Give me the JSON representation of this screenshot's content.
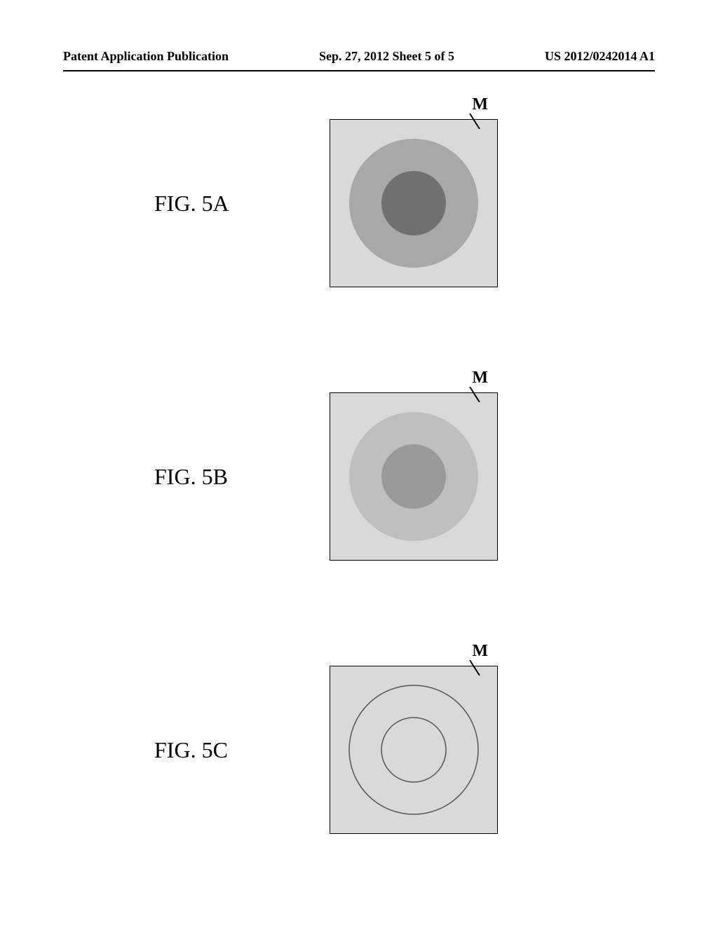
{
  "header": {
    "left": "Patent Application Publication",
    "center": "Sep. 27, 2012  Sheet 5 of 5",
    "right": "US 2012/0242014 A1"
  },
  "figures": {
    "a": {
      "label": "FIG. 5A",
      "m_label": "M",
      "square_size": 240,
      "bg_fill": "#d9d9d9",
      "outer_circle": {
        "r": 92,
        "fill": "#a8a8a8"
      },
      "inner_circle": {
        "r": 46,
        "fill": "#707070"
      },
      "border_color": "#000000",
      "border_width": 2
    },
    "b": {
      "label": "FIG. 5B",
      "m_label": "M",
      "square_size": 240,
      "bg_fill": "#d9d9d9",
      "outer_circle": {
        "r": 92,
        "fill": "#bfbfbf"
      },
      "inner_circle": {
        "r": 46,
        "fill": "#9a9a9a"
      },
      "border_color": "#000000",
      "border_width": 2
    },
    "c": {
      "label": "FIG. 5C",
      "m_label": "M",
      "square_size": 240,
      "bg_fill": "#d9d9d9",
      "outer_circle": {
        "r": 92,
        "fill": "#d9d9d9"
      },
      "inner_circle": {
        "r": 46,
        "fill": "#d9d9d9"
      },
      "border_color": "#000000",
      "border_width": 2,
      "circle_stroke": "#555555",
      "circle_stroke_width": 1.5
    }
  },
  "colors": {
    "text": "#000000",
    "page_bg": "#ffffff"
  }
}
